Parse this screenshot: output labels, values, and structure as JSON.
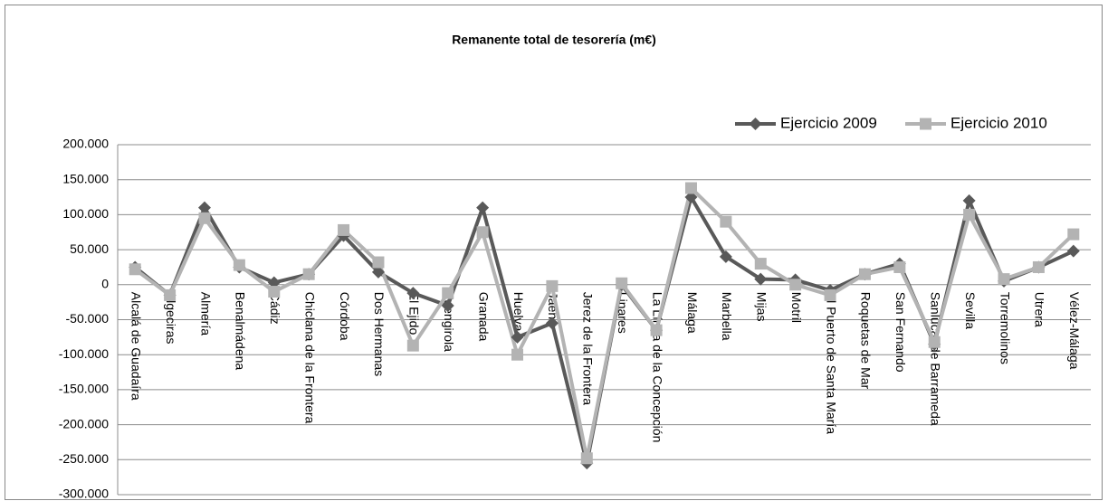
{
  "chart_data": {
    "type": "line",
    "title": "Remanente total de tesorería (m€)",
    "categories": [
      "Alcalá de Guadaíra",
      "Algeciras",
      "Almería",
      "Benalmádena",
      "Cádiz",
      "Chiclana de la Frontera",
      "Córdoba",
      "Dos Hermanas",
      "El Ejido",
      "Fuengirola",
      "Granada",
      "Huelva",
      "Jaén",
      "Jerez de la Frontera",
      "Linares",
      "La Línea de la Concepción",
      "Málaga",
      "Marbella",
      "Mijas",
      "Motril",
      "El Puerto de Santa María",
      "Roquetas de Mar",
      "San Fernando",
      "Sanlúcar de Barrameda",
      "Sevilla",
      "Torremolinos",
      "Utrera",
      "Vélez-Málaga"
    ],
    "series": [
      {
        "name": "Ejercicio 2009",
        "color": "#595959",
        "marker": "diamond",
        "values": [
          25000,
          -15000,
          110000,
          25000,
          3000,
          15000,
          70000,
          18000,
          -12000,
          -30000,
          110000,
          -75000,
          -55000,
          -255000,
          0,
          -65000,
          125000,
          40000,
          8000,
          7000,
          -8000,
          15000,
          30000,
          -85000,
          120000,
          5000,
          25000,
          48000
        ]
      },
      {
        "name": "Ejercicio 2010",
        "color": "#b3b3b3",
        "marker": "square",
        "values": [
          22000,
          -15000,
          95000,
          28000,
          -10000,
          15000,
          78000,
          32000,
          -87000,
          -12000,
          75000,
          -100000,
          -2000,
          -248000,
          2000,
          -65000,
          138000,
          90000,
          30000,
          0,
          -15000,
          15000,
          25000,
          -82000,
          100000,
          8000,
          25000,
          72000
        ]
      }
    ],
    "ylim": [
      -300000,
      200000
    ],
    "yticks": [
      {
        "value": -300000,
        "label": "-300.000"
      },
      {
        "value": -250000,
        "label": "-250.000"
      },
      {
        "value": -200000,
        "label": "-200.000"
      },
      {
        "value": -150000,
        "label": "-150.000"
      },
      {
        "value": -100000,
        "label": "-100.000"
      },
      {
        "value": -50000,
        "label": "-50.000"
      },
      0,
      {
        "value": 50000,
        "label": "50.000"
      },
      {
        "value": 100000,
        "label": "100.000"
      },
      {
        "value": 150000,
        "label": "150.000"
      },
      {
        "value": 200000,
        "label": "200.000"
      }
    ],
    "grid": true,
    "legend": "top-right"
  }
}
